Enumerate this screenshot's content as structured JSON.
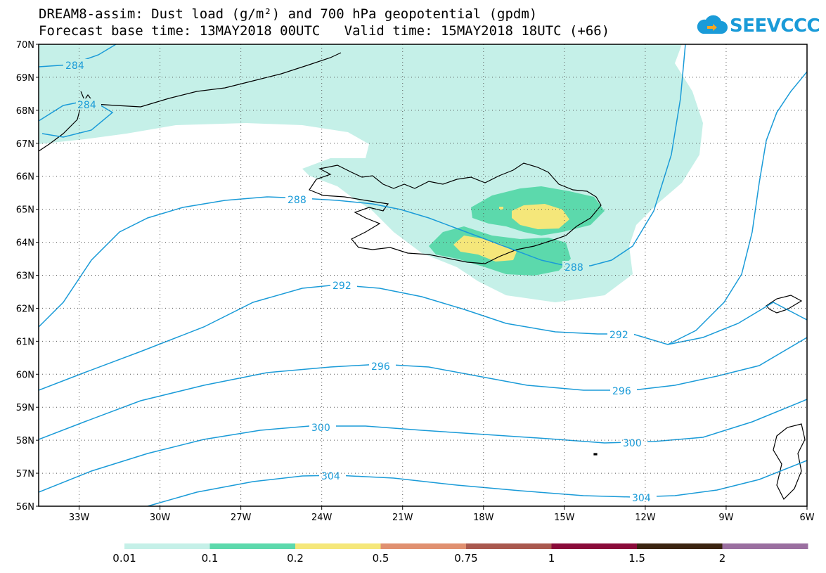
{
  "title": {
    "line1": "DREAM8-assim: Dust load (g/m²) and 700 hPa geopotential (gpdm)",
    "line2": "Forecast base time: 13MAY2018 00UTC   Valid time: 15MAY2018 18UTC (+66)"
  },
  "logo": {
    "text": "SEEVCCC",
    "icon": "cloud-logo-icon",
    "color": "#1a9bd8"
  },
  "axes": {
    "lat_labels": [
      "70N",
      "69N",
      "68N",
      "67N",
      "66N",
      "65N",
      "64N",
      "63N",
      "62N",
      "61N",
      "60N",
      "59N",
      "58N",
      "57N",
      "56N"
    ],
    "lon_labels": [
      "33W",
      "30W",
      "27W",
      "24W",
      "21W",
      "18W",
      "15W",
      "12W",
      "9W",
      "6W"
    ],
    "lat_range": [
      56,
      70
    ],
    "lon_range": [
      -34.5,
      -6
    ],
    "grid": "dotted"
  },
  "contours": {
    "color": "#1a9bd8",
    "labels": [
      "284",
      "284",
      "288",
      "288",
      "292",
      "292",
      "296",
      "296",
      "300",
      "300",
      "304",
      "304"
    ]
  },
  "colorbar": {
    "ticks": [
      "0.01",
      "0.1",
      "0.2",
      "0.5",
      "0.75",
      "1",
      "1.5",
      "2"
    ],
    "colors": [
      "#c5f0e8",
      "#5cd9ac",
      "#f5e77a",
      "#e09070",
      "#a9584e",
      "#8a0b3a",
      "#3b2410",
      "#9a6fa0"
    ]
  },
  "dust_colors": {
    "light": "#c5f0e8",
    "medium": "#5cd9ac",
    "high": "#f5e77a"
  }
}
